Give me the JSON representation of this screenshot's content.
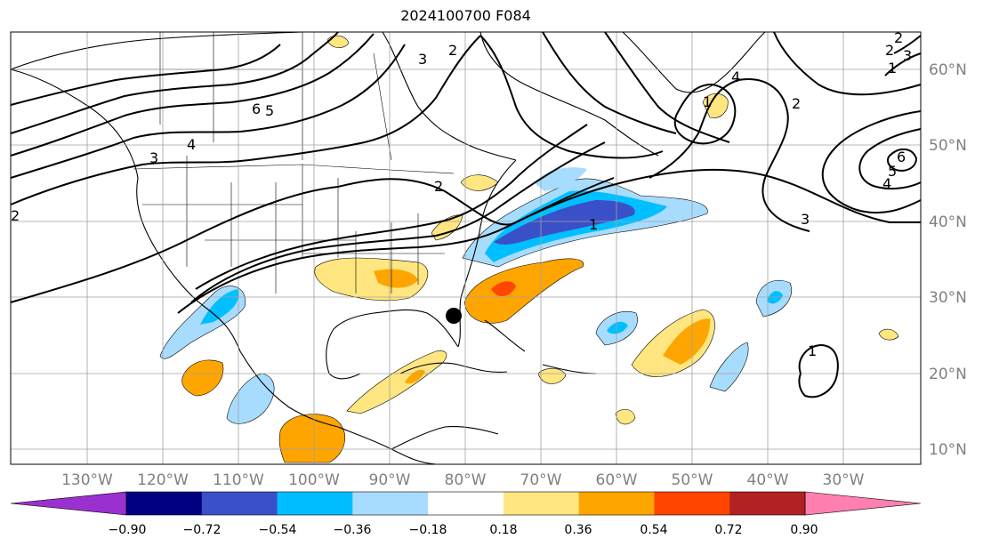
{
  "title": "2024100700 F084",
  "lat_labels": [
    "60°N",
    "50°N",
    "40°N",
    "30°N",
    "20°N",
    "10°N"
  ],
  "lon_labels": [
    "130°W",
    "120°W",
    "110°W",
    "100°W",
    "90°W",
    "80°W",
    "70°W",
    "60°W",
    "50°W",
    "40°W",
    "30°W"
  ],
  "colorbar": {
    "ticks": [
      "−0.90",
      "−0.72",
      "−0.54",
      "−0.36",
      "−0.18",
      "0.18",
      "0.36",
      "0.54",
      "0.72",
      "0.90"
    ],
    "colors": [
      "#9b30d0",
      "#000080",
      "#3a50c8",
      "#00bfff",
      "#a8dcff",
      "#ffffff",
      "#ffe680",
      "#ffa500",
      "#ff4500",
      "#b22222",
      "#ff80b0"
    ]
  },
  "contour_labels": [
    "6",
    "5",
    "4",
    "3",
    "2",
    "1",
    "2",
    "3",
    "4",
    "1",
    "2",
    "1",
    "6",
    "5",
    "4",
    "3",
    "2",
    "1",
    "2",
    "3",
    "2"
  ]
}
